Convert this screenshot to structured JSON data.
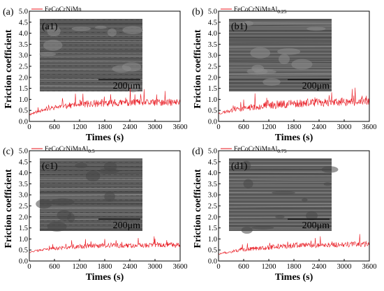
{
  "colors": {
    "trace": "#e8141c",
    "axis": "#000000",
    "sem_bg": "#5e5e5e"
  },
  "chart_data": [
    {
      "type": "line",
      "panel_label": "(a)",
      "inset_label": "(a1)",
      "scale_bar": "200μm",
      "legend": {
        "base": "FeCoCrNiMn",
        "sub": ""
      },
      "xlabel": "Times (s)",
      "ylabel": "Friction coefficient",
      "xlim": [
        0,
        3600
      ],
      "ylim": [
        0,
        5.0
      ],
      "xticks": [
        "0",
        "600",
        "1200",
        "1800",
        "2400",
        "3000",
        "3600"
      ],
      "yticks": [
        "0.0",
        "0.5",
        "1.0",
        "1.5",
        "2.0",
        "2.5",
        "3.0",
        "3.5",
        "4.0",
        "4.5",
        "5.0"
      ],
      "series": [
        {
          "name": "FeCoCrNiMn",
          "seed": 11,
          "start": 0.3,
          "plateau": 0.85,
          "rise": 700,
          "noise": 0.32,
          "x": [
            0,
            300,
            600,
            900,
            1200,
            1500,
            1800,
            2100,
            2400,
            2700,
            3000,
            3300,
            3600
          ],
          "y": [
            0.3,
            0.55,
            0.72,
            0.8,
            0.85,
            0.85,
            0.86,
            0.87,
            0.88,
            0.88,
            0.88,
            0.89,
            0.9
          ]
        }
      ]
    },
    {
      "type": "line",
      "panel_label": "(b)",
      "inset_label": "(b1)",
      "scale_bar": "200μm",
      "legend": {
        "base": "FeCoCrNiMnAl",
        "sub": "0.25"
      },
      "xlabel": "Times (s)",
      "ylabel": "Friction coefficient",
      "xlim": [
        0,
        3600
      ],
      "ylim": [
        0,
        5.0
      ],
      "xticks": [
        "0",
        "600",
        "1200",
        "1800",
        "2400",
        "3000",
        "3600"
      ],
      "yticks": [
        "0.0",
        "0.5",
        "1.0",
        "1.5",
        "2.0",
        "2.5",
        "3.0",
        "3.5",
        "4.0",
        "4.5",
        "5.0"
      ],
      "series": [
        {
          "name": "FeCoCrNiMnAl0.25",
          "seed": 23,
          "start": 0.35,
          "plateau": 0.9,
          "rise": 1100,
          "noise": 0.38,
          "x": [
            0,
            300,
            600,
            900,
            1200,
            1500,
            1800,
            2100,
            2400,
            2700,
            3000,
            3300,
            3600
          ],
          "y": [
            0.35,
            0.48,
            0.6,
            0.7,
            0.78,
            0.83,
            0.87,
            0.89,
            0.9,
            0.92,
            0.93,
            0.94,
            0.95
          ]
        }
      ]
    },
    {
      "type": "line",
      "panel_label": "(c)",
      "inset_label": "(c1)",
      "scale_bar": "200μm",
      "legend": {
        "base": "FeCoCrNiMnAl",
        "sub": "0.5"
      },
      "xlabel": "Times (s)",
      "ylabel": "Friction coefficient",
      "xlim": [
        0,
        3600
      ],
      "ylim": [
        0,
        5.0
      ],
      "xticks": [
        "0",
        "600",
        "1200",
        "1800",
        "2400",
        "3000",
        "3600"
      ],
      "yticks": [
        "0.0",
        "0.5",
        "1.0",
        "1.5",
        "2.0",
        "2.5",
        "3.0",
        "3.5",
        "4.0",
        "4.5",
        "5.0"
      ],
      "series": [
        {
          "name": "FeCoCrNiMnAl0.5",
          "seed": 37,
          "start": 0.4,
          "plateau": 0.72,
          "rise": 900,
          "noise": 0.22,
          "x": [
            0,
            300,
            600,
            900,
            1200,
            1500,
            1800,
            2100,
            2400,
            2700,
            3000,
            3300,
            3600
          ],
          "y": [
            0.4,
            0.5,
            0.58,
            0.64,
            0.68,
            0.7,
            0.72,
            0.73,
            0.74,
            0.75,
            0.76,
            0.78,
            0.75
          ]
        }
      ]
    },
    {
      "type": "line",
      "panel_label": "(d)",
      "inset_label": "(d1)",
      "scale_bar": "200μm",
      "legend": {
        "base": "FeCoCrNiMnAl",
        "sub": "0.75"
      },
      "xlabel": "Times (s)",
      "ylabel": "Friction coefficient",
      "xlim": [
        0,
        3600
      ],
      "ylim": [
        0,
        5.0
      ],
      "xticks": [
        "0",
        "600",
        "1200",
        "1800",
        "2400",
        "3000",
        "3600"
      ],
      "yticks": [
        "0.0",
        "0.5",
        "1.0",
        "1.5",
        "2.0",
        "2.5",
        "3.0",
        "3.5",
        "4.0",
        "4.5",
        "5.0"
      ],
      "series": [
        {
          "name": "FeCoCrNiMnAl0.75",
          "seed": 51,
          "start": 0.3,
          "plateau": 0.75,
          "rise": 1000,
          "noise": 0.24,
          "x": [
            0,
            300,
            600,
            900,
            1200,
            1500,
            1800,
            2100,
            2400,
            2700,
            3000,
            3300,
            3600
          ],
          "y": [
            0.3,
            0.42,
            0.52,
            0.6,
            0.66,
            0.7,
            0.72,
            0.74,
            0.75,
            0.76,
            0.77,
            0.79,
            0.8
          ]
        }
      ]
    }
  ]
}
